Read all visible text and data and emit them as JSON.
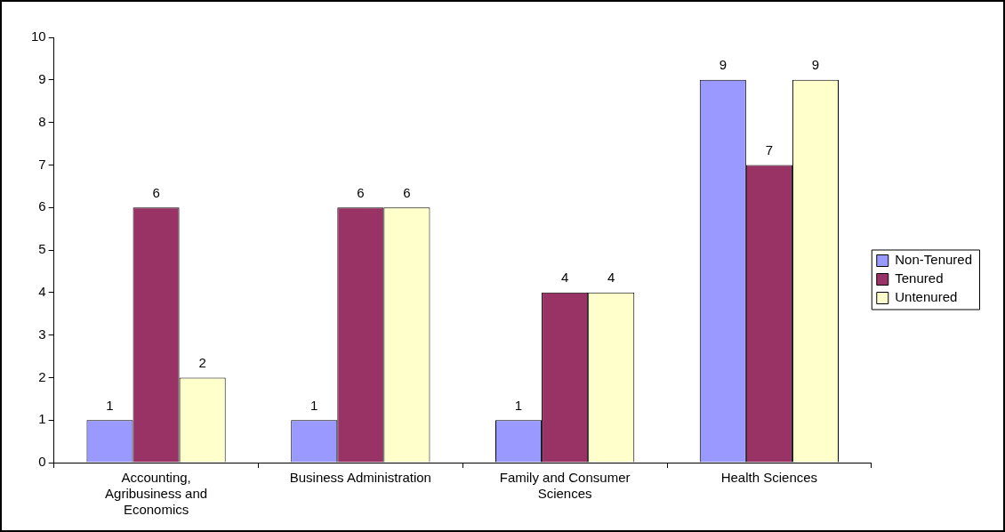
{
  "chart_data": {
    "type": "bar",
    "categories": [
      "Accounting, Agribusiness and Economics",
      "Business Administration",
      "Family and Consumer Sciences",
      "Health Sciences"
    ],
    "series": [
      {
        "name": "Non-Tenured",
        "color": "#9999ff",
        "values": [
          1,
          1,
          1,
          9
        ]
      },
      {
        "name": "Tenured",
        "color": "#993366",
        "values": [
          6,
          6,
          4,
          7
        ]
      },
      {
        "name": "Untenured",
        "color": "#ffffcc",
        "values": [
          2,
          6,
          4,
          9
        ]
      }
    ],
    "ylim": [
      0,
      10
    ],
    "yticks": [
      0,
      1,
      2,
      3,
      4,
      5,
      6,
      7,
      8,
      9,
      10
    ],
    "grid": false,
    "legend": "right",
    "data_labels": true
  }
}
